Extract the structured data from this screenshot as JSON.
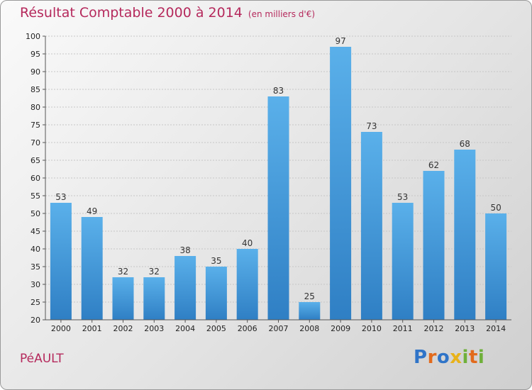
{
  "chart_data": {
    "type": "bar",
    "title": "Résultat Comptable 2000 à 2014",
    "unit_label": "(en milliers d'€)",
    "categories": [
      "2000",
      "2001",
      "2002",
      "2003",
      "2004",
      "2005",
      "2006",
      "2007",
      "2008",
      "2009",
      "2010",
      "2011",
      "2012",
      "2013",
      "2014"
    ],
    "values": [
      53,
      49,
      32,
      32,
      38,
      35,
      40,
      83,
      25,
      97,
      73,
      53,
      62,
      68,
      50
    ],
    "ylim": [
      20,
      100
    ],
    "yticks": [
      20,
      25,
      30,
      35,
      40,
      45,
      50,
      55,
      60,
      65,
      70,
      75,
      80,
      85,
      90,
      95,
      100
    ],
    "grid": true,
    "colors": {
      "bar_top": "#5ab0ea",
      "bar_bottom": "#2f7fc4",
      "title": "#b5295c"
    }
  },
  "commune": "PéAULT",
  "logo": {
    "letters": [
      "P",
      "r",
      "o",
      "x",
      "i",
      "t",
      "i"
    ]
  }
}
